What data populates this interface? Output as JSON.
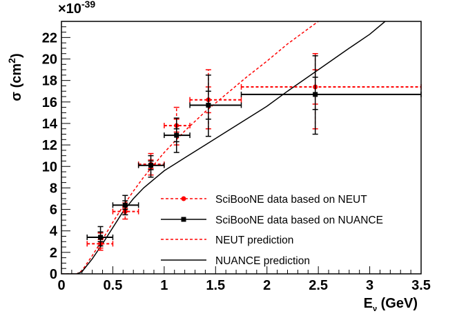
{
  "chart_data": {
    "type": "scatter",
    "exponent_label": "×10",
    "exponent_power": "-39",
    "ylabel": "σ (cm²)",
    "ylabel_parts": {
      "main": "σ (cm",
      "sup": "2",
      "close": ")"
    },
    "xlabel": "Eν (GeV)",
    "xlabel_parts": {
      "main": "E",
      "sub": "ν",
      "rest": " (GeV)"
    },
    "xlim": [
      0,
      3.5
    ],
    "ylim": [
      0,
      23.5
    ],
    "xticks": [
      "0",
      "0.5",
      "1",
      "1.5",
      "2",
      "2.5",
      "3",
      "3.5"
    ],
    "xtick_values": [
      0,
      0.5,
      1,
      1.5,
      2,
      2.5,
      3,
      3.5
    ],
    "yticks": [
      "0",
      "2",
      "4",
      "6",
      "8",
      "10",
      "12",
      "14",
      "16",
      "18",
      "20",
      "22"
    ],
    "ytick_values": [
      0,
      2,
      4,
      6,
      8,
      10,
      12,
      14,
      16,
      18,
      20,
      22
    ],
    "grid": false,
    "legend_position": "bottom-right",
    "colors": {
      "neut": "#ff0000",
      "nuance": "#000000"
    },
    "series": [
      {
        "name": "SciBooNE data based on NEUT",
        "kind": "data",
        "color": "#ff0000",
        "points": [
          {
            "x": 0.38,
            "y": 2.8,
            "xlo": 0.25,
            "xhi": 0.5,
            "stat_lo": 2.4,
            "stat_hi": 3.2,
            "tot_lo": 2.2,
            "tot_hi": 3.8
          },
          {
            "x": 0.62,
            "y": 5.8,
            "xlo": 0.5,
            "xhi": 0.75,
            "stat_lo": 5.5,
            "stat_hi": 6.1,
            "tot_lo": 5.1,
            "tot_hi": 6.6
          },
          {
            "x": 0.87,
            "y": 10.2,
            "xlo": 0.75,
            "xhi": 1.0,
            "stat_lo": 9.8,
            "stat_hi": 10.6,
            "tot_lo": 9.2,
            "tot_hi": 11.2
          },
          {
            "x": 1.12,
            "y": 13.8,
            "xlo": 1.0,
            "xhi": 1.25,
            "stat_lo": 13.2,
            "stat_hi": 14.4,
            "tot_lo": 12.0,
            "tot_hi": 15.5
          },
          {
            "x": 1.43,
            "y": 16.2,
            "xlo": 1.25,
            "xhi": 1.75,
            "stat_lo": 15.0,
            "stat_hi": 17.4,
            "tot_lo": 13.5,
            "tot_hi": 19.0
          },
          {
            "x": 2.47,
            "y": 17.4,
            "xlo": 1.75,
            "xhi": 3.5,
            "stat_lo": 15.8,
            "stat_hi": 19.0,
            "tot_lo": 13.5,
            "tot_hi": 20.5
          }
        ]
      },
      {
        "name": "SciBooNE data based on NUANCE",
        "kind": "data",
        "color": "#000000",
        "points": [
          {
            "x": 0.38,
            "y": 3.4,
            "xlo": 0.25,
            "xhi": 0.5,
            "stat_lo": 3.0,
            "stat_hi": 3.9,
            "tot_lo": 2.6,
            "tot_hi": 4.4
          },
          {
            "x": 0.62,
            "y": 6.4,
            "xlo": 0.5,
            "xhi": 0.75,
            "stat_lo": 6.0,
            "stat_hi": 6.8,
            "tot_lo": 5.5,
            "tot_hi": 7.3
          },
          {
            "x": 0.87,
            "y": 10.1,
            "xlo": 0.75,
            "xhi": 1.0,
            "stat_lo": 9.7,
            "stat_hi": 10.5,
            "tot_lo": 9.0,
            "tot_hi": 11.0
          },
          {
            "x": 1.12,
            "y": 12.9,
            "xlo": 1.0,
            "xhi": 1.25,
            "stat_lo": 12.3,
            "stat_hi": 13.5,
            "tot_lo": 11.3,
            "tot_hi": 14.5
          },
          {
            "x": 1.43,
            "y": 15.7,
            "xlo": 1.25,
            "xhi": 1.75,
            "stat_lo": 14.4,
            "stat_hi": 17.0,
            "tot_lo": 12.8,
            "tot_hi": 18.5
          },
          {
            "x": 2.47,
            "y": 16.7,
            "xlo": 1.75,
            "xhi": 3.5,
            "stat_lo": 15.3,
            "stat_hi": 18.3,
            "tot_lo": 13.0,
            "tot_hi": 20.3
          }
        ]
      },
      {
        "name": "NEUT prediction",
        "kind": "curve",
        "color": "#ff0000",
        "dashed": true,
        "x": [
          0,
          0.15,
          0.2,
          0.3,
          0.4,
          0.5,
          0.6,
          0.7,
          0.8,
          1.0,
          1.2,
          1.4,
          1.6,
          1.8,
          2.0,
          2.2,
          2.5
        ],
        "y": [
          0,
          0,
          0.3,
          1.7,
          3.2,
          4.8,
          6.3,
          7.7,
          9.0,
          11.3,
          13.3,
          15.1,
          16.7,
          18.3,
          19.8,
          21.4,
          23.5
        ]
      },
      {
        "name": "NUANCE prediction",
        "kind": "curve",
        "color": "#000000",
        "dashed": false,
        "x": [
          0,
          0.15,
          0.2,
          0.3,
          0.4,
          0.5,
          0.6,
          0.7,
          0.8,
          1.0,
          1.2,
          1.4,
          1.6,
          1.8,
          2.0,
          2.2,
          2.5,
          2.8,
          3.0,
          3.15
        ],
        "y": [
          0,
          0,
          0.2,
          1.4,
          2.8,
          4.3,
          5.8,
          7.0,
          8.0,
          9.6,
          10.8,
          12.0,
          13.2,
          14.4,
          15.6,
          17.0,
          19.0,
          21.0,
          22.3,
          23.5
        ]
      }
    ]
  }
}
